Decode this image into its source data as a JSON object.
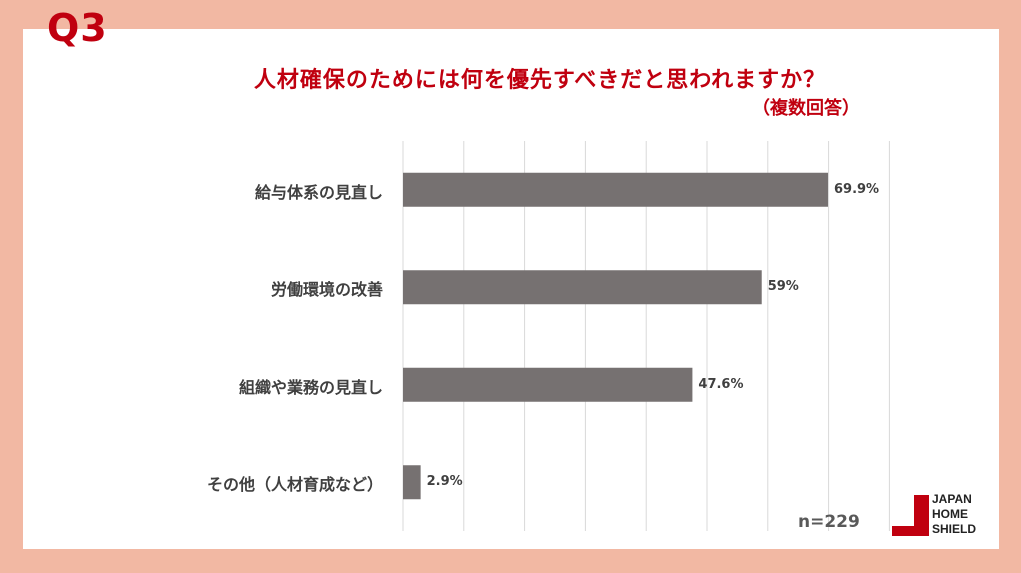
{
  "header": {
    "question": "Q3"
  },
  "chart_data": {
    "type": "bar",
    "orientation": "horizontal",
    "title": "人材確保のためには何を優先すべきだと思われますか？",
    "subtitle": "（複数回答）",
    "categories": [
      "給与体系の見直し",
      "労働環境の改善",
      "組織や業務の見直し",
      "その他（人材育成など）"
    ],
    "values": [
      69.9,
      59,
      47.6,
      2.9
    ],
    "value_labels": [
      "69.9%",
      "59%",
      "47.6%",
      "2.9%"
    ],
    "xlim": [
      0,
      80
    ],
    "grid": true,
    "bar_color": "#767171",
    "sample_size": "n=229"
  },
  "logo": {
    "lines": [
      "JAPAN",
      "HOME",
      "SHIELD"
    ],
    "color": "#c0000f"
  },
  "colors": {
    "accent": "#c0000f",
    "background": "#f2b8a3"
  }
}
